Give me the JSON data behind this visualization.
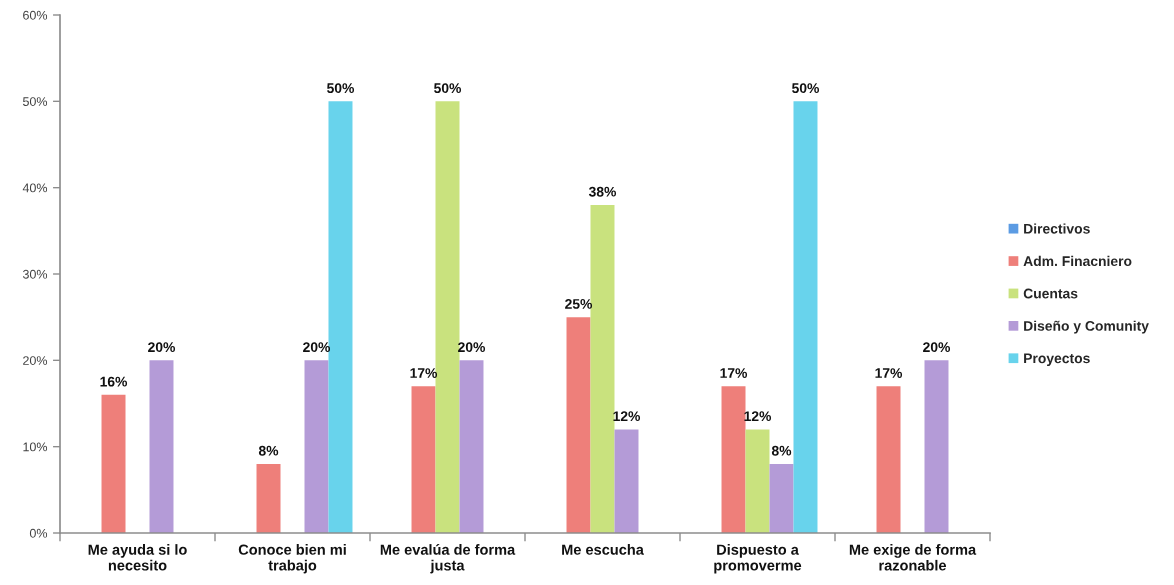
{
  "chart_data": {
    "type": "bar",
    "categories": [
      "Me ayuda si lo necesito",
      "Conoce bien mi trabajo",
      "Me evalúa de forma justa",
      "Me escucha",
      "Dispuesto a promoverme",
      "Me exige de forma razonable"
    ],
    "series": [
      {
        "name": "Directivos",
        "color": "#5b9be3",
        "values": [
          null,
          null,
          null,
          null,
          null,
          null
        ]
      },
      {
        "name": "Adm. Finacniero",
        "color": "#ee7f7a",
        "values": [
          16,
          8,
          17,
          25,
          17,
          17
        ],
        "value_labels": [
          "16%",
          "8%",
          "17%",
          "25%",
          "17%",
          "17%"
        ]
      },
      {
        "name": "Cuentas",
        "color": "#c9e27e",
        "values": [
          null,
          null,
          50,
          38,
          12,
          null
        ],
        "value_labels": [
          null,
          null,
          "50%",
          "38%",
          "12%",
          null
        ]
      },
      {
        "name": "Diseño y Comunity",
        "color": "#b49bd7",
        "values": [
          20,
          20,
          20,
          12,
          8,
          20
        ],
        "value_labels": [
          "20%",
          "20%",
          "20%",
          "12%",
          "8%",
          "20%"
        ]
      },
      {
        "name": "Proyectos",
        "color": "#68d3ec",
        "values": [
          null,
          50,
          null,
          null,
          50,
          null
        ],
        "value_labels": [
          null,
          "50%",
          null,
          null,
          "50%",
          null
        ]
      }
    ],
    "ylim": [
      0,
      60
    ],
    "yticks": [
      {
        "value": 0,
        "label": "0%"
      },
      {
        "value": 10,
        "label": "10%"
      },
      {
        "value": 20,
        "label": "20%"
      },
      {
        "value": 30,
        "label": "30%"
      },
      {
        "value": 40,
        "label": "40%"
      },
      {
        "value": 50,
        "label": "50%"
      },
      {
        "value": 60,
        "label": "60%"
      }
    ],
    "legend": "right"
  }
}
